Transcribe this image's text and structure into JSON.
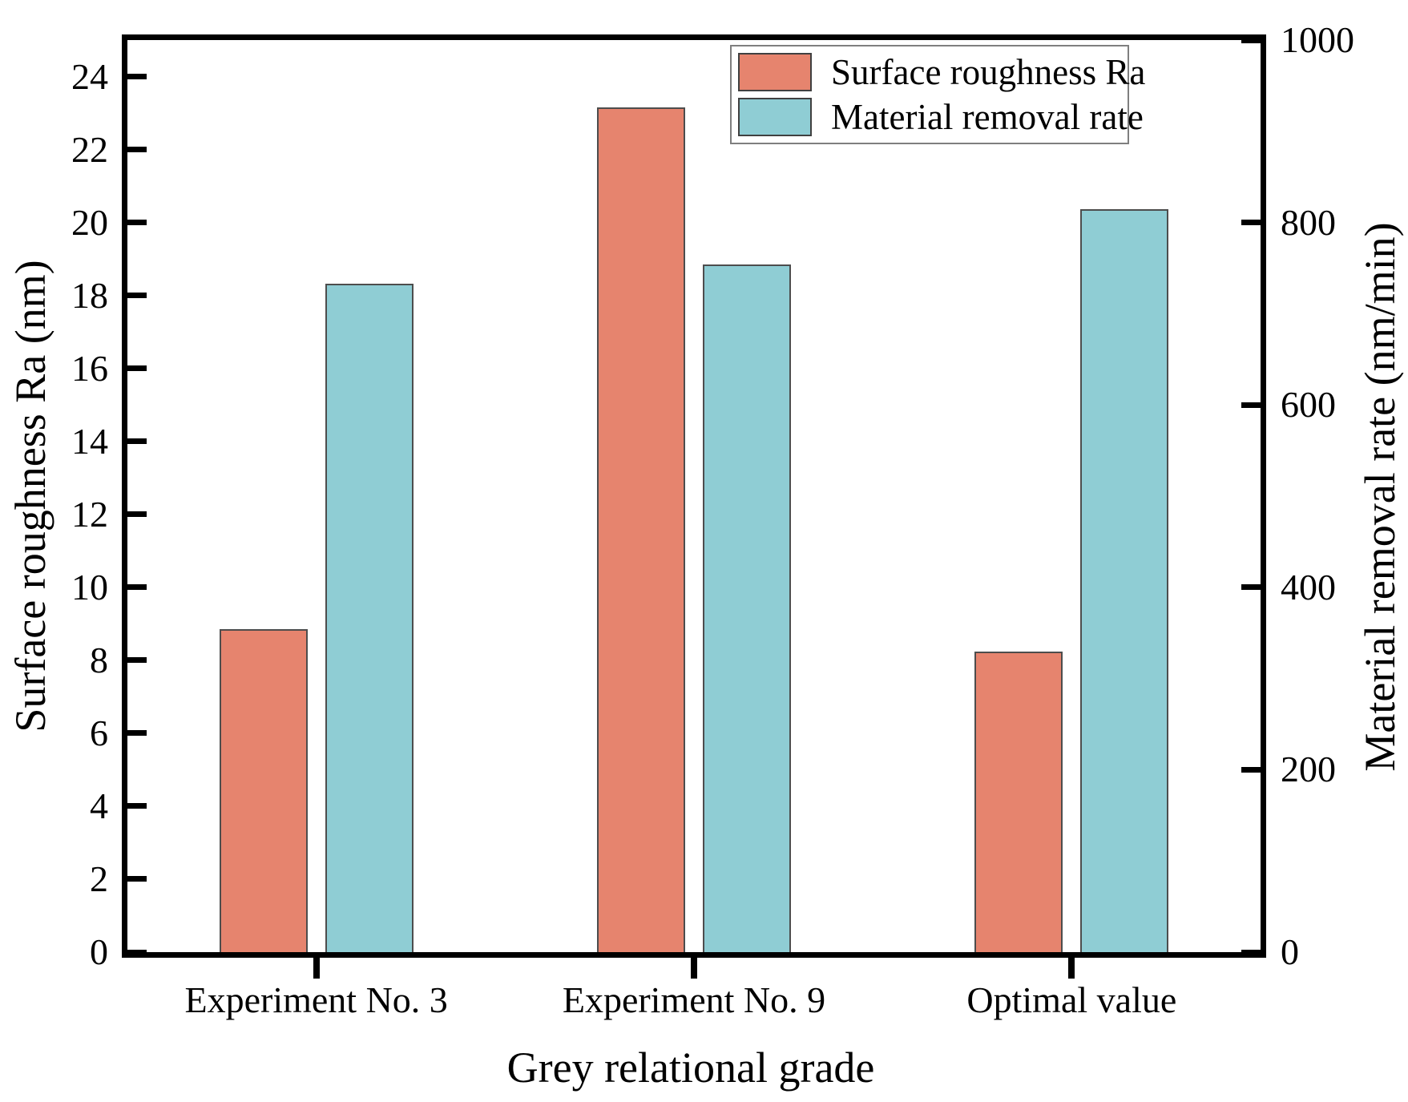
{
  "figure": {
    "background": "#ffffff",
    "bar_border_color": "#4d4d4d",
    "axis_color": "#000000"
  },
  "chart_data": {
    "type": "bar",
    "title": "",
    "xlabel": "Grey relational grade",
    "ylabel_left": "Surface roughness Ra (nm)",
    "ylabel_right": "Material removal rate (nm/min)",
    "categories": [
      "Experiment No. 3",
      "Experiment No. 9",
      "Optimal value"
    ],
    "series": [
      {
        "name": "Surface roughness Ra",
        "axis": "left",
        "color": "#E6846E",
        "values": [
          8.86,
          23.15,
          8.23
        ]
      },
      {
        "name": "Material removal rate",
        "axis": "right",
        "color": "#8FCDD4",
        "values": [
          733,
          754,
          815
        ]
      }
    ],
    "left_axis": {
      "label": "Surface roughness Ra (nm)",
      "min": 0,
      "max": 25,
      "tick_step": 2,
      "ticks": [
        0,
        2,
        4,
        6,
        8,
        10,
        12,
        14,
        16,
        18,
        20,
        22,
        24
      ]
    },
    "right_axis": {
      "label": "Material removal rate (nm/min)",
      "min": 0,
      "max": 1000,
      "tick_step": 200,
      "ticks": [
        0,
        200,
        400,
        600,
        800,
        1000
      ]
    },
    "legend_position": "upper-right-inside",
    "grid": false
  }
}
